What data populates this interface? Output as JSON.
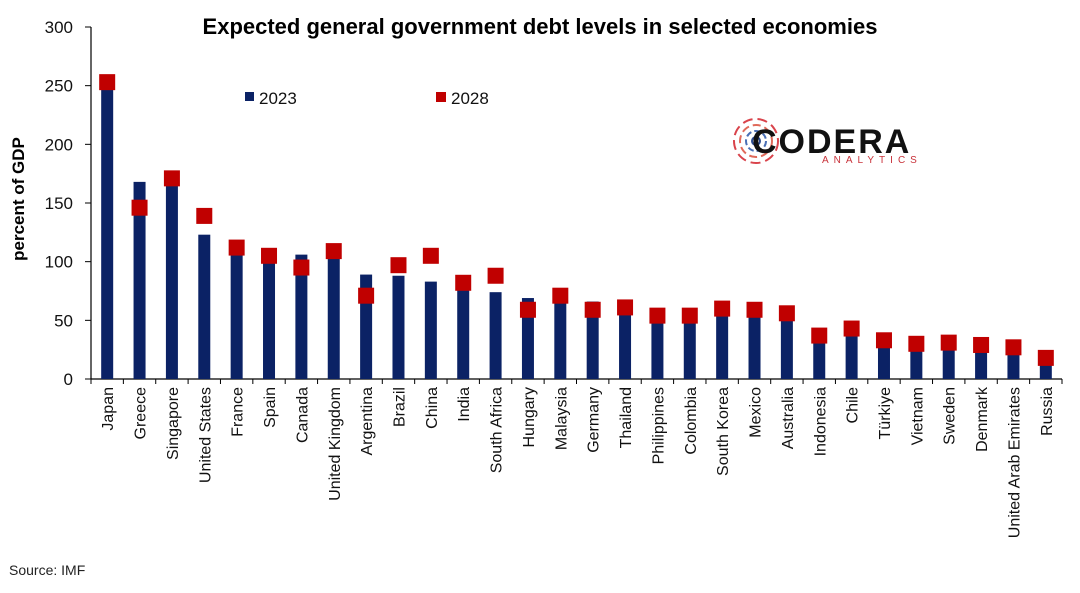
{
  "chart_data": {
    "type": "bar",
    "title": "Expected general government debt levels in selected economies",
    "ylabel": "percent of GDP",
    "xlabel": "",
    "ylim": [
      0,
      300
    ],
    "yticks": [
      0,
      50,
      100,
      150,
      200,
      250,
      300
    ],
    "grid": false,
    "legend_position": "top-left",
    "categories": [
      "Japan",
      "Greece",
      "Singapore",
      "United States",
      "France",
      "Spain",
      "Canada",
      "United Kingdom",
      "Argentina",
      "Brazil",
      "China",
      "India",
      "South Africa",
      "Hungary",
      "Malaysia",
      "Germany",
      "Thailand",
      "Philippines",
      "Colombia",
      "South Korea",
      "Mexico",
      "Australia",
      "Indonesia",
      "Chile",
      "Türkiye",
      "Vietnam",
      "Sweden",
      "Denmark",
      "United Arab Emirates",
      "Russia"
    ],
    "series": [
      {
        "name": "2023",
        "style": "bar",
        "color": "#0b2265",
        "values": [
          255,
          168,
          167,
          123,
          110,
          107,
          106,
          104,
          89,
          88,
          83,
          82,
          74,
          69,
          67,
          66,
          59,
          56,
          55,
          54,
          53,
          50,
          39,
          37,
          32,
          33,
          32,
          30,
          30,
          21
        ]
      },
      {
        "name": "2028",
        "style": "marker",
        "color": "#c00000",
        "values": [
          253,
          146,
          171,
          139,
          112,
          105,
          95,
          109,
          71,
          97,
          105,
          82,
          88,
          59,
          71,
          59,
          61,
          54,
          54,
          60,
          59,
          56,
          37,
          43,
          33,
          30,
          31,
          29,
          27,
          18
        ]
      }
    ]
  },
  "source": "Source: IMF",
  "logo": {
    "name": "CODERA",
    "sub": "ANALYTICS"
  }
}
